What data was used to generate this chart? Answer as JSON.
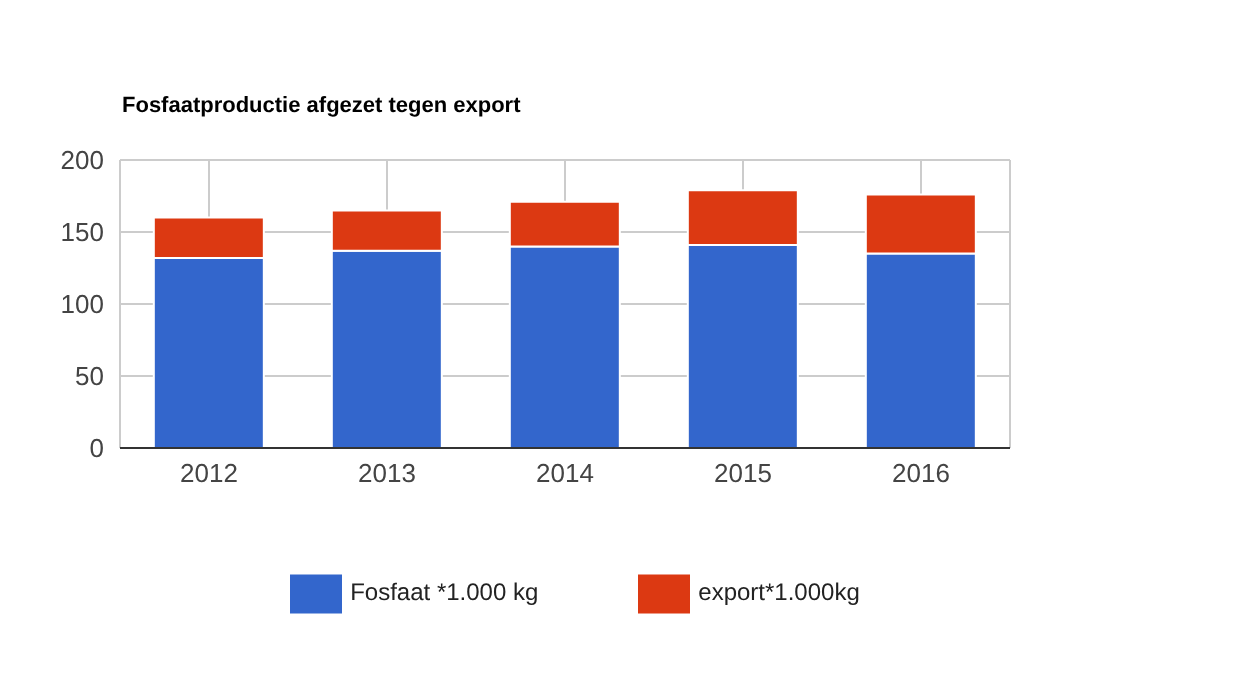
{
  "chart_data": {
    "type": "bar",
    "title": "Fosfaatproductie afgezet tegen export",
    "categories": [
      "2012",
      "2013",
      "2014",
      "2015",
      "2016"
    ],
    "stacked": true,
    "series": [
      {
        "name": "Fosfaat *1.000 kg",
        "color": "#3366cc",
        "values": [
          132,
          137,
          140,
          141,
          135
        ]
      },
      {
        "name": "export*1.000kg",
        "color": "#dc3912",
        "values": [
          28,
          28,
          31,
          38,
          41
        ]
      }
    ],
    "ylim": [
      0,
      200
    ],
    "yticks": [
      0,
      50,
      100,
      150,
      200
    ],
    "grid": true,
    "legend": "bottom"
  }
}
